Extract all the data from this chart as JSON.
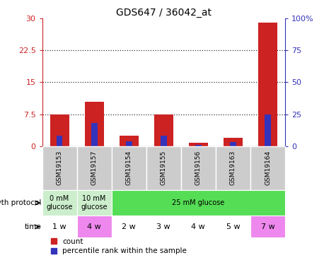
{
  "title": "GDS647 / 36042_at",
  "samples": [
    "GSM19153",
    "GSM19157",
    "GSM19154",
    "GSM19155",
    "GSM19156",
    "GSM19163",
    "GSM19164"
  ],
  "count_values": [
    7.5,
    10.5,
    2.5,
    7.5,
    0.8,
    2.0,
    29.0
  ],
  "percentile_values": [
    2.5,
    5.5,
    1.2,
    2.5,
    0.25,
    1.0,
    7.5
  ],
  "left_ylim": [
    0,
    30
  ],
  "left_yticks": [
    0,
    7.5,
    15,
    22.5,
    30
  ],
  "left_yticklabels": [
    "0",
    "7.5",
    "15",
    "22.5",
    "30"
  ],
  "right_ylim": [
    0,
    100
  ],
  "right_yticks": [
    0,
    25,
    50,
    75,
    100
  ],
  "right_yticklabels": [
    "0",
    "25",
    "50",
    "75",
    "100%"
  ],
  "bar_color_red": "#cc2222",
  "bar_color_blue": "#3333bb",
  "bar_width": 0.55,
  "blue_bar_width": 0.18,
  "growth_protocol_groups": [
    {
      "start": 0,
      "end": 1,
      "color": "#cceecc",
      "label": "0 mM\nglucose"
    },
    {
      "start": 1,
      "end": 2,
      "color": "#cceecc",
      "label": "10 mM\nglucose"
    },
    {
      "start": 2,
      "end": 7,
      "color": "#55dd55",
      "label": "25 mM glucose"
    }
  ],
  "time_labels": [
    "1 w",
    "4 w",
    "2 w",
    "3 w",
    "4 w",
    "5 w",
    "7 w"
  ],
  "time_colors": [
    "#ffffff",
    "#ee88ee",
    "#ffffff",
    "#ffffff",
    "#ffffff",
    "#ffffff",
    "#ee88ee"
  ],
  "sample_box_color": "#cccccc",
  "dotted_line_color": "#333333",
  "left_tick_color": "#cc2222",
  "right_tick_color": "#3333bb",
  "background_color": "#ffffff",
  "left_label": "growth protocol",
  "time_label": "time",
  "legend_count": "count",
  "legend_pct": "percentile rank within the sample"
}
